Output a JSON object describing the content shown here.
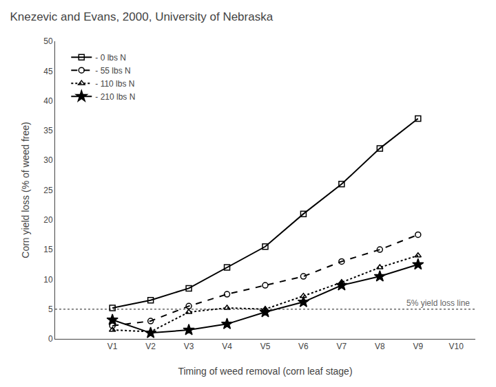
{
  "chart_data": {
    "type": "line",
    "title": "Knezevic and Evans, 2000, University of Nebraska",
    "x_label": "Timing of weed removal (corn leaf stage)",
    "y_label": "Corn yield loss (% of weed free)",
    "x": [
      1,
      2,
      3,
      4,
      5,
      6,
      7,
      8,
      9
    ],
    "series": [
      {
        "name": "- 0 lbs N",
        "color": "#000000",
        "marker": "square",
        "line_style": "solid",
        "values": [
          5.2,
          6.5,
          8.5,
          12.0,
          15.5,
          21.0,
          26.0,
          32.0,
          37.0
        ]
      },
      {
        "name": "- 55 lbs N",
        "color": "#000000",
        "marker": "circle",
        "line_style": "dashed",
        "values": [
          2.2,
          3.0,
          5.5,
          7.5,
          9.0,
          10.5,
          13.0,
          15.0,
          17.5
        ]
      },
      {
        "name": "- 110 lbs N",
        "color": "#000000",
        "marker": "triangle",
        "line_style": "dotted",
        "values": [
          1.5,
          1.2,
          4.5,
          5.2,
          5.0,
          7.2,
          9.5,
          12.0,
          14.0
        ]
      },
      {
        "name": "- 210 lbs N",
        "color": "#000000",
        "marker": "star",
        "line_style": "solid",
        "values": [
          3.2,
          1.0,
          1.5,
          2.5,
          4.5,
          6.2,
          9.0,
          10.5,
          12.5
        ]
      }
    ],
    "hline": {
      "y": 5.0,
      "label": "5% yield loss line",
      "color": "#666666",
      "line_style": "dotted"
    },
    "xlim": [
      -0.5,
      10.5
    ],
    "xticks": [
      {
        "value": 1,
        "label": "V1"
      },
      {
        "value": 2,
        "label": "V2"
      },
      {
        "value": 3,
        "label": "V3"
      },
      {
        "value": 4,
        "label": "V4"
      },
      {
        "value": 5,
        "label": "V5"
      },
      {
        "value": 6,
        "label": "V6"
      },
      {
        "value": 7,
        "label": "V7"
      },
      {
        "value": 8,
        "label": "V8"
      },
      {
        "value": 9,
        "label": "V9"
      },
      {
        "value": 10,
        "label": "V10"
      }
    ],
    "ylim": [
      0,
      50
    ],
    "yticks": [
      0,
      5,
      10,
      15,
      20,
      25,
      30,
      35,
      40,
      45,
      50
    ],
    "grid": false,
    "legend": "upper left"
  }
}
